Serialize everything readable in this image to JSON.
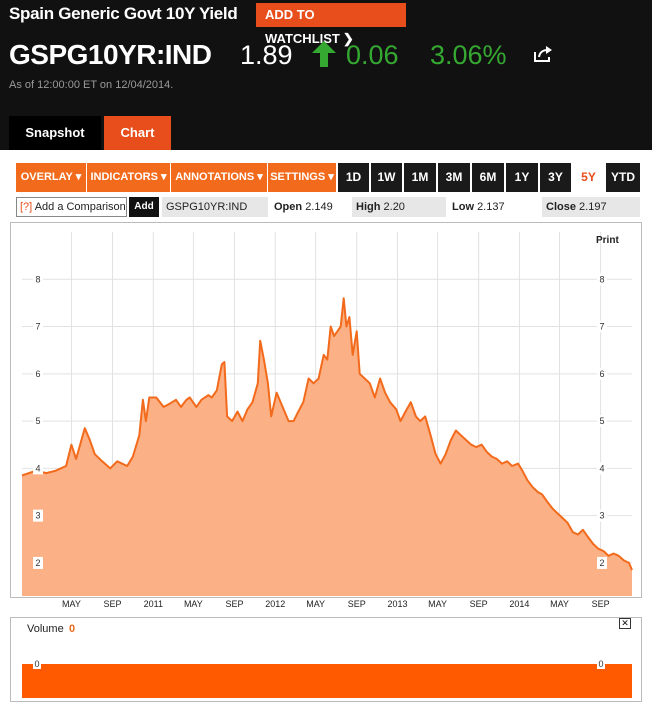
{
  "header": {
    "security_name": "Spain Generic Govt 10Y Yield",
    "watchlist_button": "ADD TO WATCHLIST",
    "ticker": "GSPG10YR:IND",
    "last_value": "1.89",
    "net_change": "0.06",
    "pct_change": "3.06%",
    "as_of": "As of 12:00:00 ET on 12/04/2014.",
    "direction": "up",
    "up_color": "#35a831",
    "accent_color": "#e84e1b"
  },
  "tabs": [
    {
      "label": "Snapshot",
      "active": false
    },
    {
      "label": "Chart",
      "active": true
    }
  ],
  "toolbar": {
    "menus": [
      "OVERLAY",
      "INDICATORS",
      "ANNOTATIONS",
      "SETTINGS"
    ],
    "ranges": [
      "1D",
      "1W",
      "1M",
      "3M",
      "6M",
      "1Y",
      "3Y",
      "5Y",
      "YTD"
    ],
    "active_range": "5Y"
  },
  "compare": {
    "help_mark": "[?]",
    "placeholder": "Add a Comparison",
    "add_button": "Add",
    "ticker": "GSPG10YR:IND"
  },
  "stats": {
    "open_label": "Open",
    "open_value": "2.149",
    "high_label": "High",
    "high_value": "2.20",
    "low_label": "Low",
    "low_value": "2.137",
    "close_label": "Close",
    "close_value": "2.197"
  },
  "print_label": "Print",
  "volume": {
    "label": "Volume",
    "value": "0",
    "tick": "0",
    "close_icon": "close-icon"
  },
  "chart_data": {
    "type": "area",
    "title": "",
    "xlabel": "",
    "ylabel": "",
    "ylim": [
      1.3,
      9.0
    ],
    "yticks": [
      2,
      3,
      4,
      5,
      6,
      7,
      8
    ],
    "xlim": [
      "2009-12-04",
      "2014-12-04"
    ],
    "xticks": [
      {
        "label": "MAY",
        "date": "2010-05-01"
      },
      {
        "label": "SEP",
        "date": "2010-09-01"
      },
      {
        "label": "2011",
        "date": "2011-01-01"
      },
      {
        "label": "MAY",
        "date": "2011-05-01"
      },
      {
        "label": "SEP",
        "date": "2011-09-01"
      },
      {
        "label": "2012",
        "date": "2012-01-01"
      },
      {
        "label": "MAY",
        "date": "2012-05-01"
      },
      {
        "label": "SEP",
        "date": "2012-09-01"
      },
      {
        "label": "2013",
        "date": "2013-01-01"
      },
      {
        "label": "MAY",
        "date": "2013-05-01"
      },
      {
        "label": "SEP",
        "date": "2013-09-01"
      },
      {
        "label": "2014",
        "date": "2014-01-01"
      },
      {
        "label": "MAY",
        "date": "2014-05-01"
      },
      {
        "label": "SEP",
        "date": "2014-09-01"
      }
    ],
    "grid": true,
    "line_color": "#f26a1b",
    "fill_color": "#fcb085",
    "series": [
      {
        "points": [
          {
            "x": "2009-12-04",
            "y": 3.85
          },
          {
            "x": "2010-01-15",
            "y": 3.95
          },
          {
            "x": "2010-02-15",
            "y": 3.9
          },
          {
            "x": "2010-03-15",
            "y": 3.95
          },
          {
            "x": "2010-04-15",
            "y": 4.05
          },
          {
            "x": "2010-05-01",
            "y": 4.5
          },
          {
            "x": "2010-05-15",
            "y": 4.2
          },
          {
            "x": "2010-06-10",
            "y": 4.85
          },
          {
            "x": "2010-06-25",
            "y": 4.6
          },
          {
            "x": "2010-07-10",
            "y": 4.3
          },
          {
            "x": "2010-08-01",
            "y": 4.15
          },
          {
            "x": "2010-08-25",
            "y": 4.0
          },
          {
            "x": "2010-09-15",
            "y": 4.15
          },
          {
            "x": "2010-10-15",
            "y": 4.05
          },
          {
            "x": "2010-11-01",
            "y": 4.25
          },
          {
            "x": "2010-11-20",
            "y": 4.7
          },
          {
            "x": "2010-12-01",
            "y": 5.45
          },
          {
            "x": "2010-12-10",
            "y": 5.0
          },
          {
            "x": "2010-12-20",
            "y": 5.5
          },
          {
            "x": "2011-01-10",
            "y": 5.5
          },
          {
            "x": "2011-02-01",
            "y": 5.3
          },
          {
            "x": "2011-02-15",
            "y": 5.35
          },
          {
            "x": "2011-03-10",
            "y": 5.45
          },
          {
            "x": "2011-03-25",
            "y": 5.3
          },
          {
            "x": "2011-04-10",
            "y": 5.45
          },
          {
            "x": "2011-04-20",
            "y": 5.5
          },
          {
            "x": "2011-05-10",
            "y": 5.3
          },
          {
            "x": "2011-05-25",
            "y": 5.45
          },
          {
            "x": "2011-06-15",
            "y": 5.55
          },
          {
            "x": "2011-06-25",
            "y": 5.5
          },
          {
            "x": "2011-07-10",
            "y": 5.65
          },
          {
            "x": "2011-07-25",
            "y": 6.2
          },
          {
            "x": "2011-08-02",
            "y": 6.25
          },
          {
            "x": "2011-08-10",
            "y": 5.1
          },
          {
            "x": "2011-08-25",
            "y": 5.0
          },
          {
            "x": "2011-09-10",
            "y": 5.2
          },
          {
            "x": "2011-09-25",
            "y": 5.0
          },
          {
            "x": "2011-10-10",
            "y": 5.25
          },
          {
            "x": "2011-10-25",
            "y": 5.4
          },
          {
            "x": "2011-11-10",
            "y": 5.8
          },
          {
            "x": "2011-11-17",
            "y": 6.7
          },
          {
            "x": "2011-11-28",
            "y": 6.3
          },
          {
            "x": "2011-12-10",
            "y": 5.8
          },
          {
            "x": "2011-12-20",
            "y": 5.1
          },
          {
            "x": "2012-01-05",
            "y": 5.6
          },
          {
            "x": "2012-01-20",
            "y": 5.35
          },
          {
            "x": "2012-02-10",
            "y": 5.0
          },
          {
            "x": "2012-02-25",
            "y": 5.0
          },
          {
            "x": "2012-03-10",
            "y": 5.2
          },
          {
            "x": "2012-03-25",
            "y": 5.4
          },
          {
            "x": "2012-04-10",
            "y": 5.9
          },
          {
            "x": "2012-04-25",
            "y": 5.8
          },
          {
            "x": "2012-05-10",
            "y": 5.9
          },
          {
            "x": "2012-05-25",
            "y": 6.4
          },
          {
            "x": "2012-06-05",
            "y": 6.3
          },
          {
            "x": "2012-06-15",
            "y": 7.0
          },
          {
            "x": "2012-06-25",
            "y": 6.8
          },
          {
            "x": "2012-07-05",
            "y": 6.9
          },
          {
            "x": "2012-07-15",
            "y": 7.0
          },
          {
            "x": "2012-07-24",
            "y": 7.6
          },
          {
            "x": "2012-08-01",
            "y": 7.0
          },
          {
            "x": "2012-08-10",
            "y": 7.2
          },
          {
            "x": "2012-08-20",
            "y": 6.4
          },
          {
            "x": "2012-09-01",
            "y": 6.9
          },
          {
            "x": "2012-09-10",
            "y": 6.0
          },
          {
            "x": "2012-09-25",
            "y": 5.9
          },
          {
            "x": "2012-10-10",
            "y": 5.8
          },
          {
            "x": "2012-10-25",
            "y": 5.5
          },
          {
            "x": "2012-11-10",
            "y": 5.9
          },
          {
            "x": "2012-11-25",
            "y": 5.6
          },
          {
            "x": "2012-12-10",
            "y": 5.4
          },
          {
            "x": "2012-12-28",
            "y": 5.25
          },
          {
            "x": "2013-01-10",
            "y": 5.0
          },
          {
            "x": "2013-01-25",
            "y": 5.2
          },
          {
            "x": "2013-02-10",
            "y": 5.4
          },
          {
            "x": "2013-02-25",
            "y": 5.1
          },
          {
            "x": "2013-03-10",
            "y": 5.0
          },
          {
            "x": "2013-03-25",
            "y": 5.1
          },
          {
            "x": "2013-04-10",
            "y": 4.7
          },
          {
            "x": "2013-04-25",
            "y": 4.3
          },
          {
            "x": "2013-05-10",
            "y": 4.1
          },
          {
            "x": "2013-05-25",
            "y": 4.3
          },
          {
            "x": "2013-06-10",
            "y": 4.6
          },
          {
            "x": "2013-06-25",
            "y": 4.8
          },
          {
            "x": "2013-07-10",
            "y": 4.7
          },
          {
            "x": "2013-07-25",
            "y": 4.6
          },
          {
            "x": "2013-08-10",
            "y": 4.5
          },
          {
            "x": "2013-08-25",
            "y": 4.45
          },
          {
            "x": "2013-09-10",
            "y": 4.5
          },
          {
            "x": "2013-09-25",
            "y": 4.35
          },
          {
            "x": "2013-10-10",
            "y": 4.25
          },
          {
            "x": "2013-10-25",
            "y": 4.2
          },
          {
            "x": "2013-11-10",
            "y": 4.1
          },
          {
            "x": "2013-11-25",
            "y": 4.15
          },
          {
            "x": "2013-12-10",
            "y": 4.05
          },
          {
            "x": "2013-12-28",
            "y": 4.1
          },
          {
            "x": "2014-01-10",
            "y": 3.95
          },
          {
            "x": "2014-01-25",
            "y": 3.75
          },
          {
            "x": "2014-02-10",
            "y": 3.6
          },
          {
            "x": "2014-02-25",
            "y": 3.5
          },
          {
            "x": "2014-03-10",
            "y": 3.45
          },
          {
            "x": "2014-03-25",
            "y": 3.3
          },
          {
            "x": "2014-04-10",
            "y": 3.15
          },
          {
            "x": "2014-04-25",
            "y": 3.05
          },
          {
            "x": "2014-05-10",
            "y": 2.95
          },
          {
            "x": "2014-05-25",
            "y": 2.85
          },
          {
            "x": "2014-06-10",
            "y": 2.65
          },
          {
            "x": "2014-06-25",
            "y": 2.6
          },
          {
            "x": "2014-07-10",
            "y": 2.7
          },
          {
            "x": "2014-07-25",
            "y": 2.55
          },
          {
            "x": "2014-08-10",
            "y": 2.4
          },
          {
            "x": "2014-08-25",
            "y": 2.3
          },
          {
            "x": "2014-09-10",
            "y": 2.25
          },
          {
            "x": "2014-09-25",
            "y": 2.15
          },
          {
            "x": "2014-10-10",
            "y": 2.2
          },
          {
            "x": "2014-10-25",
            "y": 2.15
          },
          {
            "x": "2014-11-10",
            "y": 2.05
          },
          {
            "x": "2014-11-25",
            "y": 2.0
          },
          {
            "x": "2014-12-04",
            "y": 1.85
          }
        ]
      }
    ]
  }
}
